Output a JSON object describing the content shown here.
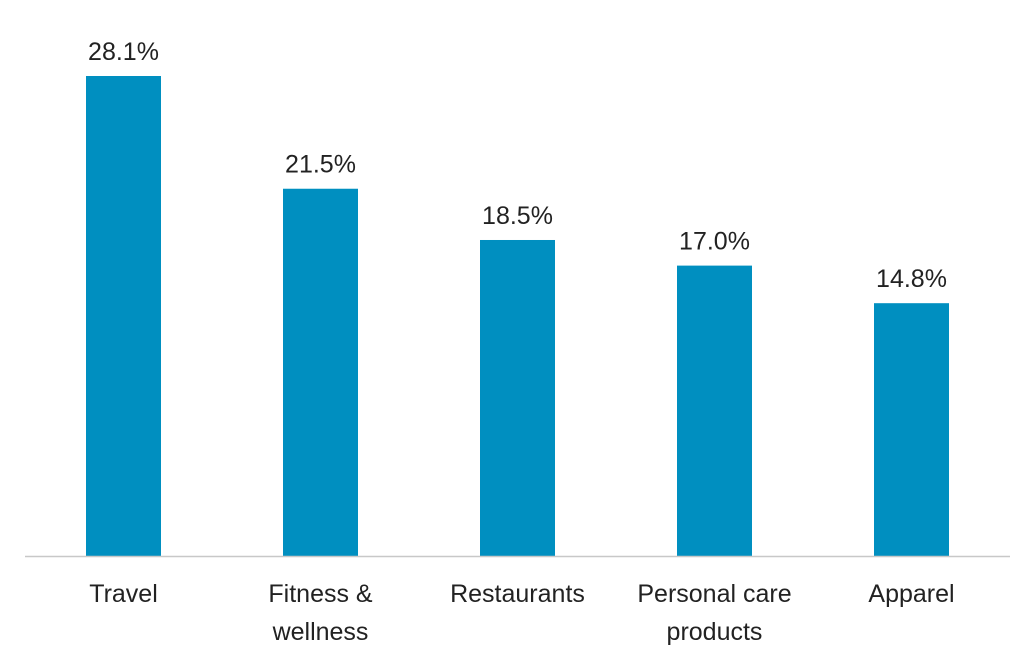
{
  "chart_data": {
    "type": "bar",
    "categories": [
      [
        "Travel"
      ],
      [
        "Fitness &",
        "wellness"
      ],
      [
        "Restaurants"
      ],
      [
        "Personal care",
        "products"
      ],
      [
        "Apparel"
      ]
    ],
    "values": [
      28.1,
      21.5,
      18.5,
      17.0,
      14.8
    ],
    "data_labels": [
      "28.1%",
      "21.5%",
      "18.5%",
      "17.0%",
      "14.8%"
    ],
    "unit": "%",
    "ylim": [
      0,
      30
    ],
    "grid": false,
    "bar_color": "#008fc0",
    "axis_color": "#c8c8c8"
  }
}
